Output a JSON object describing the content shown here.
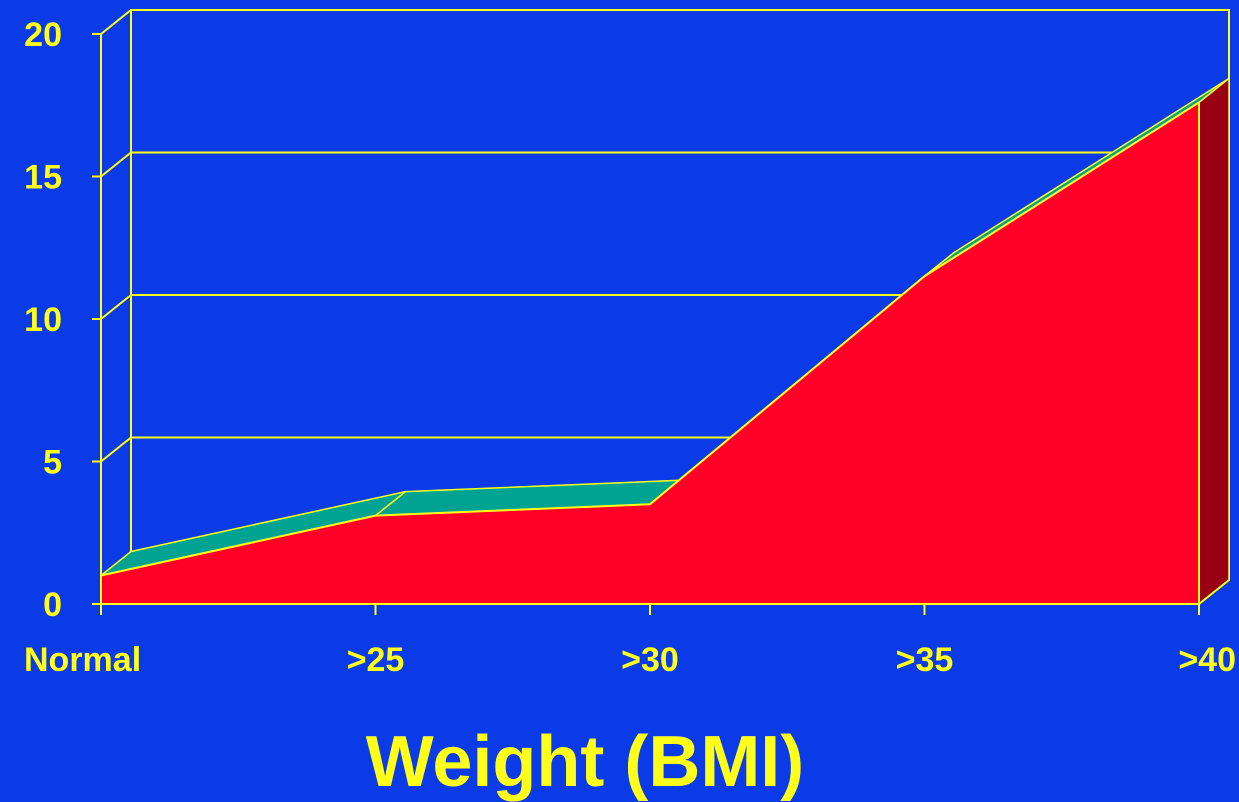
{
  "chart_data": {
    "type": "area",
    "categories": [
      "Normal",
      ">25",
      ">30",
      ">35",
      ">40"
    ],
    "series": [
      {
        "values": [
          1.0,
          3.1,
          3.5,
          11.5,
          17.6
        ]
      }
    ],
    "xlabel": "Weight (BMI)",
    "ylabel": "",
    "ylim": [
      0,
      20
    ],
    "yticks": [
      0,
      5,
      10,
      15,
      20
    ],
    "grid": true,
    "three_d": true,
    "colors": {
      "background": "#0a3be6",
      "area_front": "#ff0026",
      "area_top": "#00a392",
      "area_side": "#9a0014",
      "axes": "#ffff1a",
      "text": "#ffff1a"
    }
  }
}
